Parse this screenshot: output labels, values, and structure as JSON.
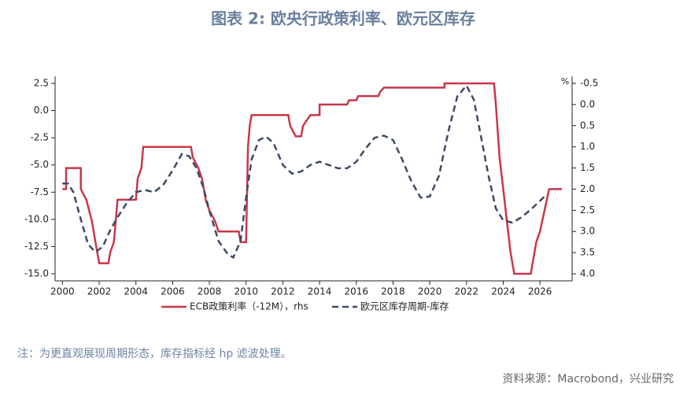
{
  "chart_data": {
    "type": "line",
    "title": "图表 2: 欧央行政策利率、欧元区库存",
    "note": "注：为更直观展现周期形态，库存指标经 hp 滤波处理。",
    "source": "资料来源：Macrobond，兴业研究",
    "y2label": "%",
    "xlim": [
      1999.6,
      2027.75
    ],
    "xticks": [
      2000,
      2002,
      2004,
      2006,
      2008,
      2010,
      2012,
      2014,
      2016,
      2018,
      2020,
      2022,
      2024,
      2026
    ],
    "ylim": [
      -15.65,
      3.15
    ],
    "yticks": [
      2.5,
      {
        "value": 0,
        "label": "0.0"
      },
      -2.5,
      {
        "value": -5,
        "label": "-5.0"
      },
      -7.5,
      {
        "value": -10,
        "label": "-10.0"
      },
      -12.5,
      {
        "value": -15,
        "label": "-15.0"
      }
    ],
    "y2lim": [
      4.167,
      -0.667
    ],
    "y2ticks": [
      -0.5,
      {
        "value": 0,
        "label": "0.0"
      },
      0.5,
      {
        "value": 1,
        "label": "1.0"
      },
      1.5,
      {
        "value": 2,
        "label": "2.0"
      },
      2.5,
      {
        "value": 3,
        "label": "3.0"
      },
      3.5,
      {
        "value": 4,
        "label": "4.0"
      }
    ],
    "series": [
      {
        "name": "ECB政策利率（-12M），rhs",
        "color": "#c8374a",
        "axis": "y2",
        "dash": false,
        "x": [
          2000.0,
          2000.2,
          2000.2,
          2001.0,
          2001.0,
          2001.3,
          2001.6,
          2001.8,
          2002.0,
          2002.5,
          2002.6,
          2002.8,
          2003.0,
          2004.0,
          2004.1,
          2004.3,
          2004.4,
          2007.0,
          2007.1,
          2007.4,
          2007.6,
          2007.8,
          2008.0,
          2008.3,
          2008.5,
          2009.6,
          2009.7,
          2010.0,
          2010.1,
          2010.2,
          2010.3,
          2012.3,
          2012.4,
          2012.7,
          2013.0,
          2013.1,
          2013.5,
          2014.0,
          2014.0,
          2015.5,
          2015.6,
          2016.0,
          2016.1,
          2017.2,
          2017.3,
          2017.5,
          2020.8,
          2020.8,
          2023.5,
          2023.6,
          2023.8,
          2024.0,
          2024.2,
          2024.4,
          2024.6,
          2025.5,
          2025.6,
          2025.8,
          2026.0,
          2026.2,
          2026.5,
          2027.2
        ],
        "values": [
          2.0,
          2.0,
          1.5,
          1.5,
          2.0,
          2.25,
          2.75,
          3.25,
          3.75,
          3.75,
          3.5,
          3.25,
          2.25,
          2.25,
          1.75,
          1.5,
          1.0,
          1.0,
          1.25,
          1.5,
          1.75,
          2.25,
          2.5,
          2.75,
          3.0,
          3.0,
          3.25,
          3.25,
          1.0,
          0.5,
          0.25,
          0.25,
          0.5,
          0.75,
          0.75,
          0.5,
          0.25,
          0.25,
          0.0,
          0.0,
          -0.1,
          -0.1,
          -0.2,
          -0.2,
          -0.3,
          -0.4,
          -0.4,
          -0.5,
          -0.5,
          0.0,
          1.25,
          2.0,
          2.75,
          3.5,
          4.0,
          4.0,
          3.75,
          3.25,
          3.0,
          2.6,
          2.0,
          2.0
        ]
      },
      {
        "name": "欧元区库存周期-库存",
        "color": "#3d4a66",
        "dash": true,
        "x": [
          2000.0,
          2000.3,
          2000.6,
          2001.0,
          2001.4,
          2001.8,
          2002.2,
          2002.6,
          2003.0,
          2003.5,
          2004.0,
          2004.5,
          2005.0,
          2005.5,
          2006.0,
          2006.5,
          2006.9,
          2007.3,
          2007.7,
          2008.0,
          2008.5,
          2009.0,
          2009.3,
          2009.7,
          2010.0,
          2010.3,
          2010.7,
          2011.1,
          2011.5,
          2012.0,
          2012.5,
          2013.0,
          2013.5,
          2014.0,
          2014.5,
          2015.0,
          2015.5,
          2016.0,
          2016.5,
          2017.0,
          2017.5,
          2018.0,
          2018.5,
          2019.0,
          2019.5,
          2020.0,
          2020.5,
          2021.0,
          2021.5,
          2022.0,
          2022.4,
          2022.8,
          2023.2,
          2023.6,
          2024.0,
          2024.5,
          2025.0,
          2025.5,
          2026.0,
          2026.3
        ],
        "values": [
          -6.7,
          -6.7,
          -7.5,
          -10,
          -12.3,
          -13,
          -12.5,
          -11,
          -9.8,
          -8.5,
          -7.5,
          -7.3,
          -7.5,
          -6.8,
          -5.5,
          -4,
          -4.2,
          -5.3,
          -7.2,
          -9.2,
          -12,
          -13.2,
          -13.5,
          -12,
          -8,
          -4.5,
          -2.7,
          -2.4,
          -3,
          -5,
          -5.8,
          -5.6,
          -5,
          -4.7,
          -5,
          -5.3,
          -5.3,
          -4.7,
          -3.5,
          -2.5,
          -2.3,
          -2.7,
          -4.5,
          -6.5,
          -8,
          -7.9,
          -6,
          -2,
          1.3,
          2.3,
          1,
          -2.5,
          -6,
          -9,
          -10.1,
          -10.3,
          -9.8,
          -9.1,
          -8.3,
          -7.8
        ]
      }
    ]
  }
}
